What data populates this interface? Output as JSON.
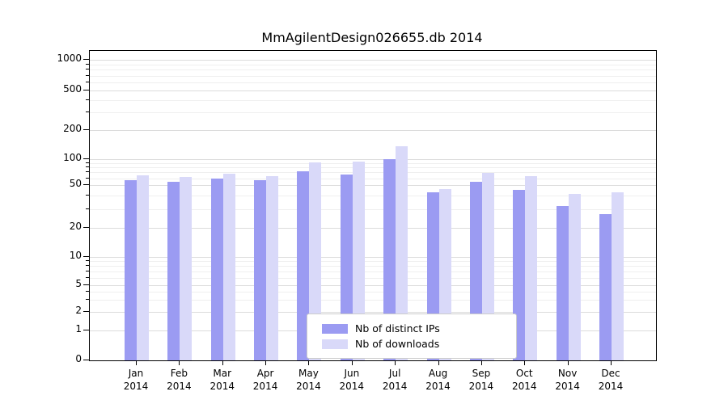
{
  "chart_data": {
    "type": "bar",
    "title": "MmAgilentDesign026655.db 2014",
    "year_label": "2014",
    "categories": [
      "Jan",
      "Feb",
      "Mar",
      "Apr",
      "May",
      "Jun",
      "Jul",
      "Aug",
      "Sep",
      "Oct",
      "Nov",
      "Dec"
    ],
    "series": [
      {
        "name": "Nb of distinct IPs",
        "color": "#9b9bf2",
        "values": [
          57,
          55,
          60,
          57,
          73,
          67,
          100,
          43,
          54,
          45,
          32,
          27
        ]
      },
      {
        "name": "Nb of downloads",
        "color": "#d9d9f9",
        "values": [
          65,
          62,
          68,
          63,
          91,
          94,
          135,
          46,
          69,
          64,
          41,
          43
        ]
      }
    ],
    "yticks": [
      0,
      1,
      2,
      5,
      10,
      20,
      50,
      100,
      200,
      500,
      1000
    ],
    "ylim": [
      0,
      1000
    ],
    "yscale": "symlog",
    "grid": true,
    "legend_position": "lower center"
  }
}
